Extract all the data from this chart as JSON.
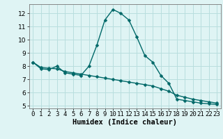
{
  "xlabel": "Humidex (Indice chaleur)",
  "background_color": "#dff4f4",
  "grid_color": "#b8dede",
  "line_color": "#006868",
  "xlim": [
    -0.5,
    23.5
  ],
  "ylim": [
    4.8,
    12.7
  ],
  "yticks": [
    5,
    6,
    7,
    8,
    9,
    10,
    11,
    12
  ],
  "xticks": [
    0,
    1,
    2,
    3,
    4,
    5,
    6,
    7,
    8,
    9,
    10,
    11,
    12,
    13,
    14,
    15,
    16,
    17,
    18,
    19,
    20,
    21,
    22,
    23
  ],
  "series1_x": [
    0,
    1,
    2,
    3,
    4,
    5,
    6,
    7,
    8,
    9,
    10,
    11,
    12,
    13,
    14,
    15,
    16,
    17,
    18,
    19,
    20,
    21,
    22,
    23
  ],
  "series1_y": [
    8.3,
    7.8,
    7.75,
    8.0,
    7.5,
    7.4,
    7.3,
    8.0,
    9.6,
    11.5,
    12.3,
    12.0,
    11.5,
    10.2,
    8.8,
    8.3,
    7.3,
    6.7,
    5.5,
    5.4,
    5.3,
    5.2,
    5.15,
    5.1
  ],
  "series2_x": [
    0,
    1,
    2,
    3,
    4,
    5,
    6,
    7,
    8,
    9,
    10,
    11,
    12,
    13,
    14,
    15,
    16,
    17,
    18,
    19,
    20,
    21,
    22,
    23
  ],
  "series2_y": [
    8.3,
    7.9,
    7.85,
    7.8,
    7.6,
    7.5,
    7.4,
    7.3,
    7.2,
    7.1,
    7.0,
    6.9,
    6.8,
    6.7,
    6.6,
    6.5,
    6.3,
    6.1,
    5.8,
    5.65,
    5.5,
    5.4,
    5.3,
    5.2
  ],
  "xlabel_fontsize": 7.5,
  "tick_fontsize": 6.5,
  "marker_size": 2.5,
  "line_width": 1.0
}
